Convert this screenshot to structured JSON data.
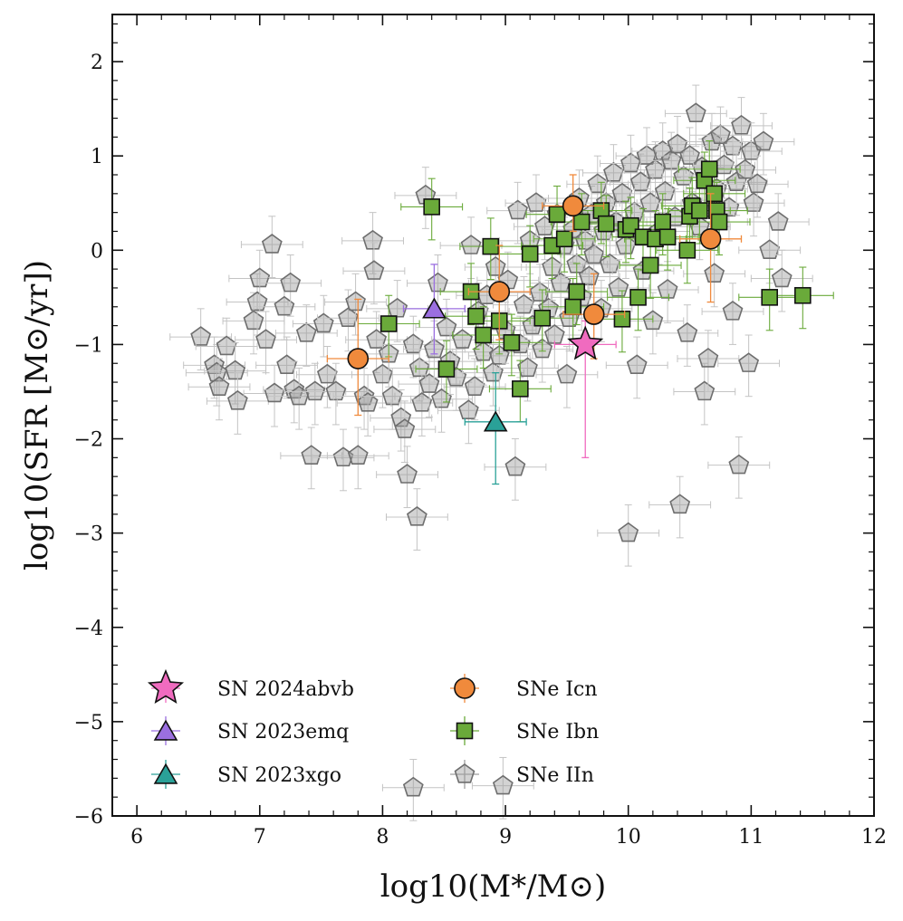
{
  "chart_data": {
    "type": "scatter",
    "xlabel": "log10(M*/M⊙)",
    "ylabel": "log10(SFR [M⊙/yr])",
    "xlim": [
      5.8,
      12
    ],
    "ylim": [
      -6,
      2.5
    ],
    "x_ticks": [
      "6",
      "7",
      "8",
      "9",
      "10",
      "11",
      "12"
    ],
    "y_ticks": [
      "−6",
      "−5",
      "−4",
      "−3",
      "−2",
      "−1",
      "0",
      "1",
      "2"
    ],
    "grid": false,
    "legend_position": "bottom-left",
    "colors": {
      "sn2024abvb": "#f06bbf",
      "sn2023emq": "#9b6fe0",
      "sn2023xgo": "#2aa198",
      "icn": "#f08a3c",
      "ibn": "#6aaa3a",
      "iin": "#9e9e9e"
    },
    "series": [
      {
        "name": "SN 2024abvb",
        "marker": "star",
        "points": [
          {
            "x": 9.65,
            "y": -1.0,
            "ylo": -2.2,
            "yhi": -0.75
          }
        ]
      },
      {
        "name": "SN 2023emq",
        "marker": "triangle",
        "points": [
          {
            "x": 8.42,
            "y": -0.62,
            "ylo": -1.1,
            "yhi": -0.15
          }
        ]
      },
      {
        "name": "SN 2023xgo",
        "marker": "triangle",
        "points": [
          {
            "x": 8.92,
            "y": -1.82,
            "ylo": -2.48,
            "yhi": -1.3
          }
        ]
      },
      {
        "name": "SNe Icn",
        "marker": "circle",
        "points": [
          {
            "x": 7.8,
            "y": -1.15,
            "ylo": -1.75,
            "yhi": -0.52
          },
          {
            "x": 8.95,
            "y": -0.44,
            "ylo": -0.95,
            "yhi": 0.05
          },
          {
            "x": 9.55,
            "y": 0.47,
            "ylo": 0.2,
            "yhi": 0.8
          },
          {
            "x": 9.72,
            "y": -0.68,
            "ylo": -1.15,
            "yhi": -0.25
          },
          {
            "x": 10.67,
            "y": 0.12,
            "ylo": -0.55,
            "yhi": 0.6
          }
        ]
      },
      {
        "name": "SNe Ibn",
        "marker": "square",
        "points": [
          {
            "x": 8.4,
            "y": 0.46
          },
          {
            "x": 8.05,
            "y": -0.78
          },
          {
            "x": 8.52,
            "y": -1.26
          },
          {
            "x": 8.72,
            "y": -0.44
          },
          {
            "x": 8.76,
            "y": -0.7
          },
          {
            "x": 8.82,
            "y": -0.9
          },
          {
            "x": 8.88,
            "y": 0.04
          },
          {
            "x": 8.95,
            "y": -0.75
          },
          {
            "x": 9.05,
            "y": -0.98
          },
          {
            "x": 9.12,
            "y": -1.47
          },
          {
            "x": 9.2,
            "y": -0.04
          },
          {
            "x": 9.3,
            "y": -0.72
          },
          {
            "x": 9.38,
            "y": 0.05
          },
          {
            "x": 9.42,
            "y": 0.38
          },
          {
            "x": 9.48,
            "y": 0.12
          },
          {
            "x": 9.55,
            "y": -0.6
          },
          {
            "x": 9.58,
            "y": -0.44
          },
          {
            "x": 9.62,
            "y": 0.3
          },
          {
            "x": 9.78,
            "y": 0.42
          },
          {
            "x": 9.82,
            "y": 0.28
          },
          {
            "x": 9.95,
            "y": -0.73
          },
          {
            "x": 9.98,
            "y": 0.22
          },
          {
            "x": 10.02,
            "y": 0.26
          },
          {
            "x": 10.08,
            "y": -0.5
          },
          {
            "x": 10.12,
            "y": 0.14
          },
          {
            "x": 10.18,
            "y": -0.16
          },
          {
            "x": 10.22,
            "y": 0.12
          },
          {
            "x": 10.28,
            "y": 0.3
          },
          {
            "x": 10.32,
            "y": 0.14
          },
          {
            "x": 10.48,
            "y": 0.0
          },
          {
            "x": 10.5,
            "y": 0.36
          },
          {
            "x": 10.52,
            "y": 0.47
          },
          {
            "x": 10.58,
            "y": 0.42
          },
          {
            "x": 10.62,
            "y": 0.74
          },
          {
            "x": 10.66,
            "y": 0.86
          },
          {
            "x": 10.7,
            "y": 0.6
          },
          {
            "x": 10.72,
            "y": 0.42
          },
          {
            "x": 10.74,
            "y": 0.3
          },
          {
            "x": 11.15,
            "y": -0.5
          },
          {
            "x": 11.42,
            "y": -0.48
          }
        ]
      },
      {
        "name": "SNe IIn",
        "marker": "pentagon",
        "points": [
          {
            "x": 6.52,
            "y": -0.92
          },
          {
            "x": 6.63,
            "y": -1.22
          },
          {
            "x": 6.65,
            "y": -1.3
          },
          {
            "x": 6.67,
            "y": -1.45
          },
          {
            "x": 6.73,
            "y": -1.02
          },
          {
            "x": 6.8,
            "y": -1.28
          },
          {
            "x": 6.82,
            "y": -1.6
          },
          {
            "x": 6.95,
            "y": -0.75
          },
          {
            "x": 6.98,
            "y": -0.55
          },
          {
            "x": 7.0,
            "y": -0.3
          },
          {
            "x": 7.05,
            "y": -0.95
          },
          {
            "x": 7.1,
            "y": 0.06
          },
          {
            "x": 7.12,
            "y": -1.52
          },
          {
            "x": 7.2,
            "y": -0.6
          },
          {
            "x": 7.22,
            "y": -1.22
          },
          {
            "x": 7.25,
            "y": -0.35
          },
          {
            "x": 7.28,
            "y": -1.48
          },
          {
            "x": 7.32,
            "y": -1.55
          },
          {
            "x": 7.38,
            "y": -0.88
          },
          {
            "x": 7.42,
            "y": -2.18
          },
          {
            "x": 7.45,
            "y": -1.5
          },
          {
            "x": 7.52,
            "y": -0.78
          },
          {
            "x": 7.55,
            "y": -1.32
          },
          {
            "x": 7.62,
            "y": -1.5
          },
          {
            "x": 7.68,
            "y": -2.2
          },
          {
            "x": 7.72,
            "y": -0.72
          },
          {
            "x": 7.78,
            "y": -0.55
          },
          {
            "x": 7.8,
            "y": -2.18
          },
          {
            "x": 7.85,
            "y": -1.55
          },
          {
            "x": 7.88,
            "y": -1.62
          },
          {
            "x": 7.92,
            "y": 0.1
          },
          {
            "x": 7.93,
            "y": -0.22
          },
          {
            "x": 7.95,
            "y": -0.95
          },
          {
            "x": 8.0,
            "y": -1.32
          },
          {
            "x": 8.05,
            "y": -1.1
          },
          {
            "x": 8.08,
            "y": -1.55
          },
          {
            "x": 8.12,
            "y": -0.62
          },
          {
            "x": 8.15,
            "y": -1.78
          },
          {
            "x": 8.18,
            "y": -1.9
          },
          {
            "x": 8.2,
            "y": -2.38
          },
          {
            "x": 8.25,
            "y": -1.0
          },
          {
            "x": 8.28,
            "y": -2.83
          },
          {
            "x": 8.3,
            "y": -1.25
          },
          {
            "x": 8.32,
            "y": -1.62
          },
          {
            "x": 8.35,
            "y": 0.58
          },
          {
            "x": 8.38,
            "y": -1.42
          },
          {
            "x": 8.42,
            "y": -1.05
          },
          {
            "x": 8.45,
            "y": -0.35
          },
          {
            "x": 8.48,
            "y": -1.58
          },
          {
            "x": 8.52,
            "y": -0.82
          },
          {
            "x": 8.55,
            "y": -1.18
          },
          {
            "x": 8.6,
            "y": -1.35
          },
          {
            "x": 8.65,
            "y": -0.95
          },
          {
            "x": 8.7,
            "y": -1.7
          },
          {
            "x": 8.72,
            "y": 0.05
          },
          {
            "x": 8.75,
            "y": -1.45
          },
          {
            "x": 8.78,
            "y": -0.65
          },
          {
            "x": 8.82,
            "y": -1.08
          },
          {
            "x": 8.85,
            "y": -0.48
          },
          {
            "x": 8.9,
            "y": -1.3
          },
          {
            "x": 8.92,
            "y": -0.18
          },
          {
            "x": 8.95,
            "y": -1.12
          },
          {
            "x": 9.0,
            "y": -0.85
          },
          {
            "x": 9.02,
            "y": -0.32
          },
          {
            "x": 9.08,
            "y": -2.3
          },
          {
            "x": 9.1,
            "y": 0.42
          },
          {
            "x": 9.12,
            "y": -1.0
          },
          {
            "x": 9.15,
            "y": -0.58
          },
          {
            "x": 9.18,
            "y": -1.25
          },
          {
            "x": 9.2,
            "y": 0.1
          },
          {
            "x": 9.22,
            "y": -0.8
          },
          {
            "x": 9.25,
            "y": 0.5
          },
          {
            "x": 9.28,
            "y": -0.45
          },
          {
            "x": 9.3,
            "y": -1.05
          },
          {
            "x": 9.32,
            "y": 0.25
          },
          {
            "x": 9.35,
            "y": -0.62
          },
          {
            "x": 9.38,
            "y": -0.18
          },
          {
            "x": 9.4,
            "y": -0.9
          },
          {
            "x": 9.42,
            "y": 0.38
          },
          {
            "x": 9.45,
            "y": -0.35
          },
          {
            "x": 9.48,
            "y": 0.05
          },
          {
            "x": 9.5,
            "y": -1.32
          },
          {
            "x": 9.52,
            "y": -0.72
          },
          {
            "x": 9.55,
            "y": 0.22
          },
          {
            "x": 9.58,
            "y": -0.15
          },
          {
            "x": 9.6,
            "y": 0.55
          },
          {
            "x": 9.62,
            "y": -0.5
          },
          {
            "x": 9.65,
            "y": 0.1
          },
          {
            "x": 9.68,
            "y": -0.28
          },
          {
            "x": 9.7,
            "y": 0.38
          },
          {
            "x": 9.72,
            "y": -0.05
          },
          {
            "x": 9.75,
            "y": 0.7
          },
          {
            "x": 9.78,
            "y": -0.62
          },
          {
            "x": 9.8,
            "y": 0.2
          },
          {
            "x": 9.82,
            "y": 0.5
          },
          {
            "x": 9.85,
            "y": -0.15
          },
          {
            "x": 9.88,
            "y": 0.82
          },
          {
            "x": 9.9,
            "y": 0.3
          },
          {
            "x": 9.92,
            "y": -0.4
          },
          {
            "x": 9.95,
            "y": 0.6
          },
          {
            "x": 9.98,
            "y": 0.05
          },
          {
            "x": 10.0,
            "y": -3.0
          },
          {
            "x": 10.02,
            "y": 0.92
          },
          {
            "x": 10.05,
            "y": 0.4
          },
          {
            "x": 10.07,
            "y": -1.22
          },
          {
            "x": 10.1,
            "y": 0.72
          },
          {
            "x": 10.12,
            "y": -0.22
          },
          {
            "x": 10.15,
            "y": 1.0
          },
          {
            "x": 10.18,
            "y": 0.5
          },
          {
            "x": 10.2,
            "y": -0.75
          },
          {
            "x": 10.22,
            "y": 0.85
          },
          {
            "x": 10.25,
            "y": 0.2
          },
          {
            "x": 10.28,
            "y": 1.05
          },
          {
            "x": 10.3,
            "y": 0.62
          },
          {
            "x": 10.32,
            "y": -0.42
          },
          {
            "x": 10.35,
            "y": 0.95
          },
          {
            "x": 10.38,
            "y": 0.35
          },
          {
            "x": 10.4,
            "y": 1.12
          },
          {
            "x": 10.42,
            "y": -2.7
          },
          {
            "x": 10.45,
            "y": 0.78
          },
          {
            "x": 10.48,
            "y": -0.88
          },
          {
            "x": 10.5,
            "y": 1.0
          },
          {
            "x": 10.52,
            "y": 0.5
          },
          {
            "x": 10.55,
            "y": 1.45
          },
          {
            "x": 10.58,
            "y": 0.25
          },
          {
            "x": 10.6,
            "y": 0.88
          },
          {
            "x": 10.62,
            "y": -1.5
          },
          {
            "x": 10.65,
            "y": -1.15
          },
          {
            "x": 10.68,
            "y": 1.15
          },
          {
            "x": 10.7,
            "y": -0.25
          },
          {
            "x": 10.72,
            "y": 0.65
          },
          {
            "x": 10.75,
            "y": 1.22
          },
          {
            "x": 10.78,
            "y": 0.9
          },
          {
            "x": 10.82,
            "y": 0.45
          },
          {
            "x": 10.85,
            "y": 1.1
          },
          {
            "x": 10.88,
            "y": 0.72
          },
          {
            "x": 10.9,
            "y": -2.28
          },
          {
            "x": 10.92,
            "y": 1.32
          },
          {
            "x": 10.95,
            "y": 0.85
          },
          {
            "x": 10.98,
            "y": -1.2
          },
          {
            "x": 11.0,
            "y": 1.05
          },
          {
            "x": 11.02,
            "y": 0.5
          },
          {
            "x": 11.05,
            "y": 0.7
          },
          {
            "x": 11.1,
            "y": 1.15
          },
          {
            "x": 11.15,
            "y": 0.0
          },
          {
            "x": 11.22,
            "y": 0.3
          },
          {
            "x": 11.25,
            "y": -0.3
          },
          {
            "x": 10.85,
            "y": -0.65
          },
          {
            "x": 8.98,
            "y": -5.68
          },
          {
            "x": 8.25,
            "y": -5.7
          }
        ]
      }
    ]
  },
  "legend": {
    "left": [
      {
        "label": "SN 2024abvb",
        "marker": "star",
        "color": "#f06bbf"
      },
      {
        "label": "SN 2023emq",
        "marker": "triangle",
        "color": "#9b6fe0"
      },
      {
        "label": "SN 2023xgo",
        "marker": "triangle",
        "color": "#2aa198"
      }
    ],
    "right": [
      {
        "label": "SNe Icn",
        "marker": "circle",
        "color": "#f08a3c"
      },
      {
        "label": "SNe Ibn",
        "marker": "square",
        "color": "#6aaa3a"
      },
      {
        "label": "SNe IIn",
        "marker": "pentagon",
        "color": "#9e9e9e"
      }
    ]
  }
}
